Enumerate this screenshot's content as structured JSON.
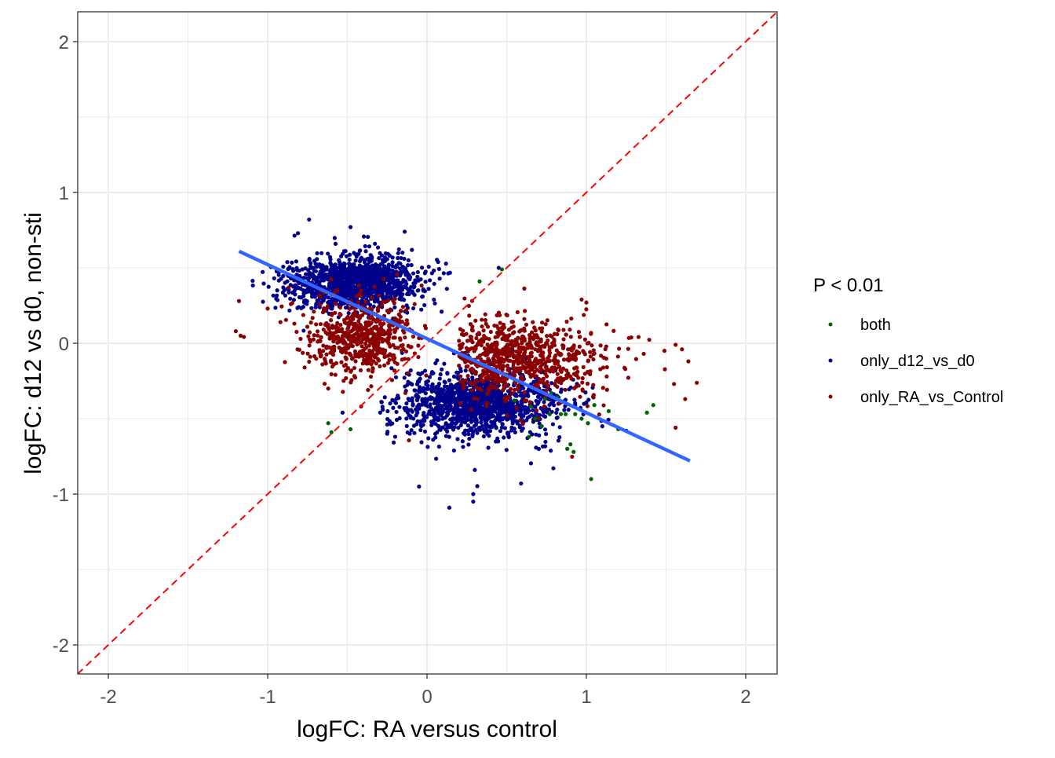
{
  "chart_data": {
    "type": "scatter",
    "xlabel": "logFC: RA versus control",
    "ylabel": "logFC: d12 vs d0, non-sti",
    "xlim": [
      -2.19,
      2.2
    ],
    "ylim": [
      -2.2,
      2.2
    ],
    "x_ticks": [
      -2,
      -1,
      0,
      1,
      2
    ],
    "x_tick_labels": [
      "-2",
      "-1",
      "0",
      "1",
      "2"
    ],
    "y_ticks": [
      -2,
      -1,
      0,
      1,
      2
    ],
    "y_tick_labels": [
      "-2",
      "-1",
      "0",
      "1",
      "2"
    ],
    "grid": true,
    "legend": {
      "title": "P < 0.01",
      "placement": "right",
      "entries": [
        {
          "label": "both",
          "color": "#006400"
        },
        {
          "label": "only_d12_vs_d0",
          "color": "#00008B"
        },
        {
          "label": "only_RA_vs_Control",
          "color": "#8B0000"
        }
      ]
    },
    "reference_line": {
      "type": "identity",
      "slope": 1,
      "intercept": 0,
      "color": "#FF0000",
      "style": "dashed"
    },
    "regression_line": {
      "x": [
        -1.18,
        1.65
      ],
      "y": [
        0.61,
        -0.78
      ],
      "color": "#3366FF"
    },
    "series": [
      {
        "name": "only_d12_vs_d0",
        "color": "#00008B",
        "clusters": [
          {
            "center": [
              -0.45,
              0.4
            ],
            "sd": [
              0.2,
              0.08
            ],
            "n": 1300,
            "xrange": [
              -1.1,
              0.15
            ]
          },
          {
            "center": [
              0.33,
              -0.4
            ],
            "sd": [
              0.25,
              0.1
            ],
            "n": 1300,
            "xrange": [
              -0.3,
              1.15
            ]
          }
        ],
        "points": [
          [
            -0.74,
            0.82
          ],
          [
            -0.48,
            0.77
          ],
          [
            -0.14,
            0.74
          ],
          [
            -0.81,
            0.73
          ],
          [
            0.14,
            -1.09
          ],
          [
            0.29,
            -1.0
          ],
          [
            0.29,
            -1.05
          ],
          [
            -0.05,
            -0.95
          ],
          [
            0.59,
            -0.93
          ],
          [
            0.3,
            -0.84
          ],
          [
            -0.53,
            -0.46
          ],
          [
            0.45,
            0.5
          ],
          [
            1.1,
            -0.55
          ],
          [
            1.25,
            -0.58
          ],
          [
            -0.2,
            -0.62
          ],
          [
            -0.25,
            -0.6
          ]
        ]
      },
      {
        "name": "only_RA_vs_Control",
        "color": "#8B0000",
        "clusters": [
          {
            "center": [
              -0.42,
              0.05
            ],
            "sd": [
              0.16,
              0.12
            ],
            "n": 600,
            "xrange": [
              -1.2,
              0.0
            ]
          },
          {
            "center": [
              0.52,
              -0.1
            ],
            "sd": [
              0.28,
              0.13
            ],
            "n": 900,
            "xrange": [
              0.2,
              1.7
            ]
          }
        ],
        "points": [
          [
            -1.18,
            0.28
          ],
          [
            -1.2,
            0.08
          ],
          [
            -1.17,
            0.05
          ],
          [
            -0.92,
            0.14
          ],
          [
            -1.0,
            0.23
          ],
          [
            1.64,
            -0.12
          ],
          [
            1.62,
            -0.37
          ],
          [
            1.6,
            -0.04
          ],
          [
            1.56,
            -0.01
          ],
          [
            1.49,
            -0.05
          ],
          [
            1.55,
            -0.27
          ],
          [
            1.56,
            -0.56
          ],
          [
            1.36,
            -0.07
          ],
          [
            0.97,
            0.29
          ],
          [
            1.0,
            0.27
          ],
          [
            -0.37,
            -0.31
          ],
          [
            -0.62,
            -0.3
          ]
        ]
      },
      {
        "name": "both",
        "color": "#006400",
        "points": [
          [
            0.33,
            0.41
          ],
          [
            0.47,
            0.49
          ],
          [
            -0.6,
            -0.59
          ],
          [
            -0.48,
            -0.57
          ],
          [
            -0.62,
            -0.53
          ],
          [
            1.03,
            -0.9
          ],
          [
            0.9,
            -0.67
          ],
          [
            0.88,
            -0.7
          ],
          [
            0.92,
            -0.72
          ],
          [
            0.97,
            -0.5
          ],
          [
            0.84,
            -0.47
          ],
          [
            0.87,
            -0.47
          ],
          [
            0.93,
            -0.47
          ],
          [
            1.01,
            -0.53
          ],
          [
            1.05,
            -0.41
          ],
          [
            1.42,
            -0.41
          ],
          [
            1.38,
            -0.46
          ],
          [
            1.2,
            -0.57
          ],
          [
            0.78,
            -0.33
          ],
          [
            0.82,
            -0.36
          ],
          [
            0.64,
            -0.62
          ],
          [
            0.65,
            -0.42
          ],
          [
            0.74,
            -0.37
          ],
          [
            0.77,
            -0.47
          ],
          [
            0.72,
            -0.55
          ],
          [
            0.68,
            -0.5
          ],
          [
            1.14,
            -0.45
          ],
          [
            0.55,
            -0.38
          ]
        ]
      }
    ]
  }
}
